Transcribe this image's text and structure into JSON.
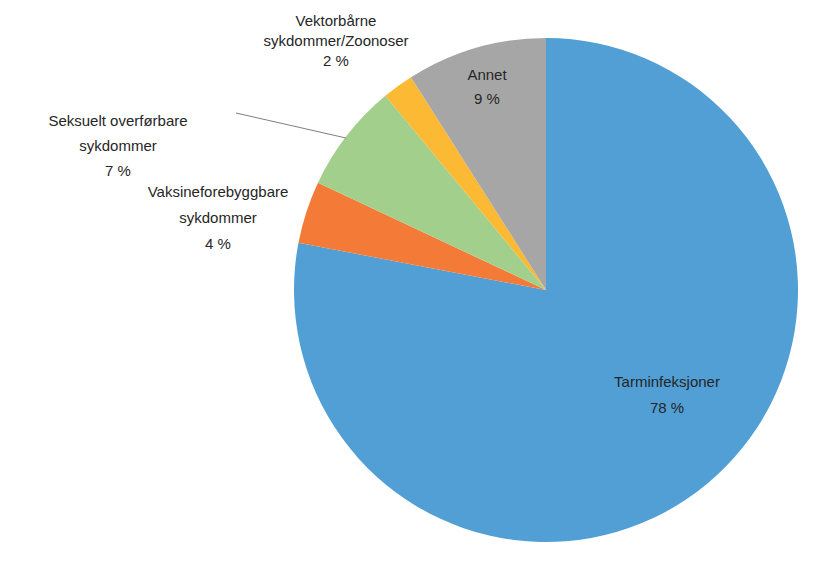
{
  "chart_data": {
    "type": "pie",
    "categories": [
      "Tarminfeksjoner",
      "Vaksineforebyggbare sykdommer",
      "Seksuelt overførbare sykdommer",
      "Vektorbårne sykdommer/Zoonoser",
      "Annet"
    ],
    "values": [
      78,
      4,
      7,
      2,
      9
    ],
    "value_labels": [
      "78 %",
      "4 %",
      "7 %",
      "2 %",
      "9 %"
    ],
    "colors": [
      "#519fd4",
      "#f47a38",
      "#a2d08c",
      "#fbb934",
      "#a6a6a6"
    ],
    "data_labels": true
  }
}
